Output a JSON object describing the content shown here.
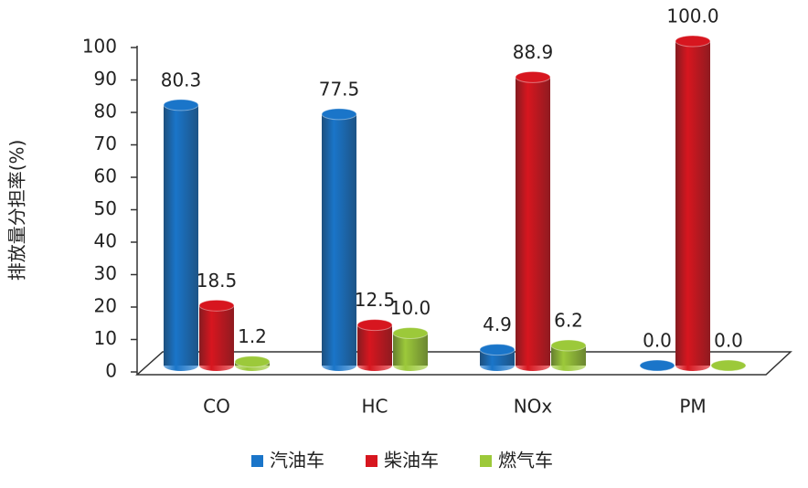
{
  "chart_data": {
    "type": "bar3d",
    "y_label": "排放量分担率(%)",
    "categories": [
      "CO",
      "HC",
      "NOx",
      "PM"
    ],
    "series": [
      {
        "name": "汽油车",
        "color": "#1a75c9",
        "values": [
          80.3,
          77.5,
          4.9,
          0.0
        ],
        "value_labels": [
          "80.3",
          "77.5",
          "4.9",
          "0.0"
        ]
      },
      {
        "name": "柴油车",
        "color": "#d7161f",
        "values": [
          18.5,
          12.5,
          88.9,
          100.0
        ],
        "value_labels": [
          "18.5",
          "12.5",
          "88.9",
          "100.0"
        ]
      },
      {
        "name": "燃气车",
        "color": "#9cc93a",
        "values": [
          1.2,
          10.0,
          6.2,
          0.0
        ],
        "value_labels": [
          "1.2",
          "10.0",
          "6.2",
          "0.0"
        ]
      }
    ],
    "ylim": [
      0,
      100
    ],
    "yticks": [
      0,
      10,
      20,
      30,
      40,
      50,
      60,
      70,
      80,
      90,
      100
    ]
  }
}
